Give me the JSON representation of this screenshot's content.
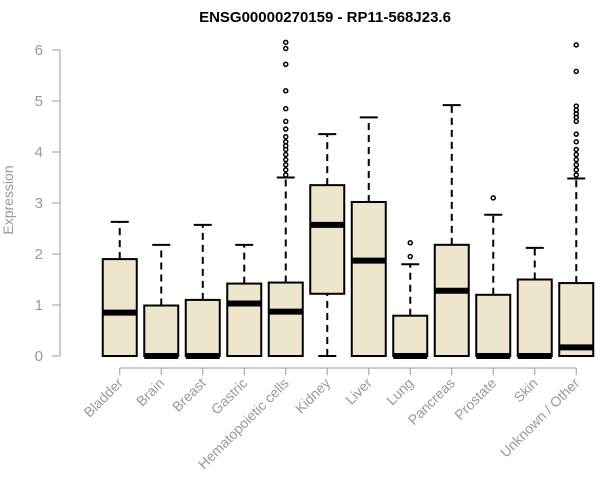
{
  "chart_data": {
    "type": "boxplot",
    "title": "ENSG00000270159 - RP11-568J23.6",
    "xlabel": "",
    "ylabel": "Expression",
    "ylim": [
      0,
      6.2
    ],
    "yticks": [
      "0",
      "1",
      "2",
      "3",
      "4",
      "5",
      "6"
    ],
    "box_fill": "#ede6cc",
    "median_color": "#000000",
    "categories": [
      "Bladder",
      "Brain",
      "Breast",
      "Gastric",
      "Hematopoietic cells",
      "Kidney",
      "Liver",
      "Lung",
      "Pancreas",
      "Prostate",
      "Skin",
      "Unknown / Other"
    ],
    "boxes": [
      {
        "min": 0,
        "q1": 0,
        "median": 0.85,
        "q3": 1.9,
        "max": 2.63,
        "outliers": []
      },
      {
        "min": 0,
        "q1": 0,
        "median": 0,
        "q3": 0.99,
        "max": 2.18,
        "outliers": []
      },
      {
        "min": 0,
        "q1": 0,
        "median": 0,
        "q3": 1.1,
        "max": 2.57,
        "outliers": []
      },
      {
        "min": 0,
        "q1": 0,
        "median": 1.03,
        "q3": 1.42,
        "max": 2.18,
        "outliers": []
      },
      {
        "min": 0,
        "q1": 0,
        "median": 0.87,
        "q3": 1.44,
        "max": 3.5,
        "outliers": [
          3.55,
          3.65,
          3.75,
          3.85,
          3.95,
          4.05,
          4.12,
          4.2,
          4.3,
          4.45,
          4.6,
          4.85,
          5.2,
          5.72,
          6.03,
          6.15
        ]
      },
      {
        "min": 0,
        "q1": 1.22,
        "median": 2.57,
        "q3": 3.35,
        "max": 4.35,
        "outliers": []
      },
      {
        "min": 0,
        "q1": 0,
        "median": 1.87,
        "q3": 3.02,
        "max": 4.68,
        "outliers": []
      },
      {
        "min": 0,
        "q1": 0,
        "median": 0,
        "q3": 0.79,
        "max": 1.8,
        "outliers": [
          1.95,
          2.22
        ]
      },
      {
        "min": 0,
        "q1": 0,
        "median": 1.28,
        "q3": 2.18,
        "max": 4.92,
        "outliers": []
      },
      {
        "min": 0,
        "q1": 0,
        "median": 0,
        "q3": 1.2,
        "max": 2.77,
        "outliers": [
          3.1
        ]
      },
      {
        "min": 0,
        "q1": 0,
        "median": 0,
        "q3": 1.5,
        "max": 2.12,
        "outliers": []
      },
      {
        "min": 0,
        "q1": 0,
        "median": 0.17,
        "q3": 1.43,
        "max": 3.48,
        "outliers": [
          3.55,
          3.65,
          3.75,
          3.85,
          3.95,
          4.05,
          4.2,
          4.35,
          4.6,
          4.68,
          4.75,
          4.82,
          4.9,
          5.58,
          6.1
        ]
      }
    ]
  }
}
